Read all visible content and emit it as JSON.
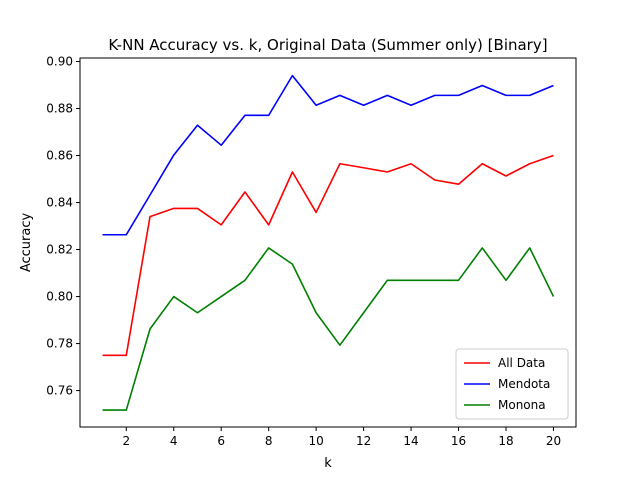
{
  "chart_data": {
    "type": "line",
    "title": "K-NN Accuracy vs. k, Original Data (Summer only) [Binary]",
    "xlabel": "k",
    "ylabel": "Accuracy",
    "xlim": [
      0.05,
      20.95
    ],
    "ylim": [
      0.7445,
      0.9015
    ],
    "xticks": [
      2,
      4,
      6,
      8,
      10,
      12,
      14,
      16,
      18,
      20
    ],
    "yticks": [
      0.76,
      0.78,
      0.8,
      0.82,
      0.84,
      0.86,
      0.88,
      0.9
    ],
    "ytick_labels": [
      "0.76",
      "0.78",
      "0.80",
      "0.82",
      "0.84",
      "0.86",
      "0.88",
      "0.90"
    ],
    "grid": false,
    "legend_position": "lower-right",
    "x": [
      1,
      2,
      3,
      4,
      5,
      6,
      7,
      8,
      9,
      10,
      11,
      12,
      13,
      14,
      15,
      16,
      17,
      18,
      19,
      20
    ],
    "series": [
      {
        "name": "All Data",
        "color": "#ff0000",
        "values": [
          0.775,
          0.775,
          0.834,
          0.8375,
          0.8375,
          0.8305,
          0.8445,
          0.8305,
          0.853,
          0.8358,
          0.8565,
          0.8548,
          0.853,
          0.8565,
          0.8496,
          0.8478,
          0.8565,
          0.8513,
          0.8565,
          0.86
        ]
      },
      {
        "name": "Mendota",
        "color": "#0000ff",
        "values": [
          0.8263,
          0.8263,
          0.8432,
          0.8602,
          0.8729,
          0.8644,
          0.8771,
          0.8771,
          0.894,
          0.8814,
          0.8856,
          0.8814,
          0.8856,
          0.8814,
          0.8856,
          0.8856,
          0.8898,
          0.8856,
          0.8856,
          0.8898
        ]
      },
      {
        "name": "Monona",
        "color": "#008000",
        "values": [
          0.7517,
          0.7517,
          0.7862,
          0.8,
          0.7931,
          0.8,
          0.8069,
          0.8207,
          0.8138,
          0.7931,
          0.7793,
          0.7931,
          0.8069,
          0.8069,
          0.8069,
          0.8069,
          0.8207,
          0.8069,
          0.8207,
          0.8
        ]
      }
    ]
  }
}
